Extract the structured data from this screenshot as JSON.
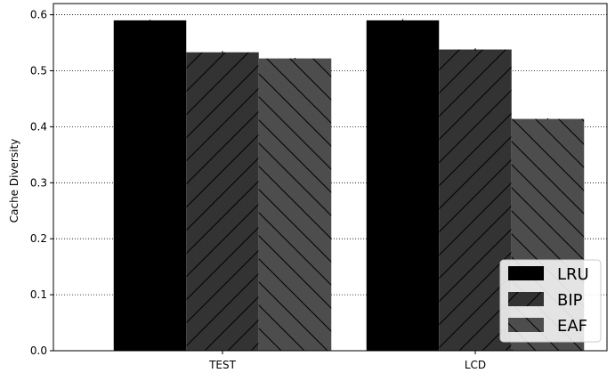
{
  "chart_data": {
    "type": "bar",
    "title": "",
    "xlabel": "",
    "ylabel": "Cache Diversity",
    "ylim": [
      0,
      0.62
    ],
    "yticks": [
      "0.0",
      "0.1",
      "0.2",
      "0.3",
      "0.4",
      "0.5",
      "0.6"
    ],
    "categories": [
      "TEST",
      "LCD"
    ],
    "grid": "horizontal dotted",
    "legend_position": "bottom-right",
    "series": [
      {
        "name": "LRU",
        "values": [
          0.59,
          0.59
        ],
        "errors": [
          0.001,
          0.002
        ],
        "color": "#000000",
        "hatch": "none"
      },
      {
        "name": "BIP",
        "values": [
          0.533,
          0.538
        ],
        "errors": [
          0.002,
          0.002
        ],
        "color": "#333333",
        "hatch": "forward-diagonal"
      },
      {
        "name": "EAF",
        "values": [
          0.522,
          0.414
        ],
        "errors": [
          0.001,
          0.001
        ],
        "color": "#4d4d4d",
        "hatch": "backward-diagonal"
      }
    ]
  }
}
